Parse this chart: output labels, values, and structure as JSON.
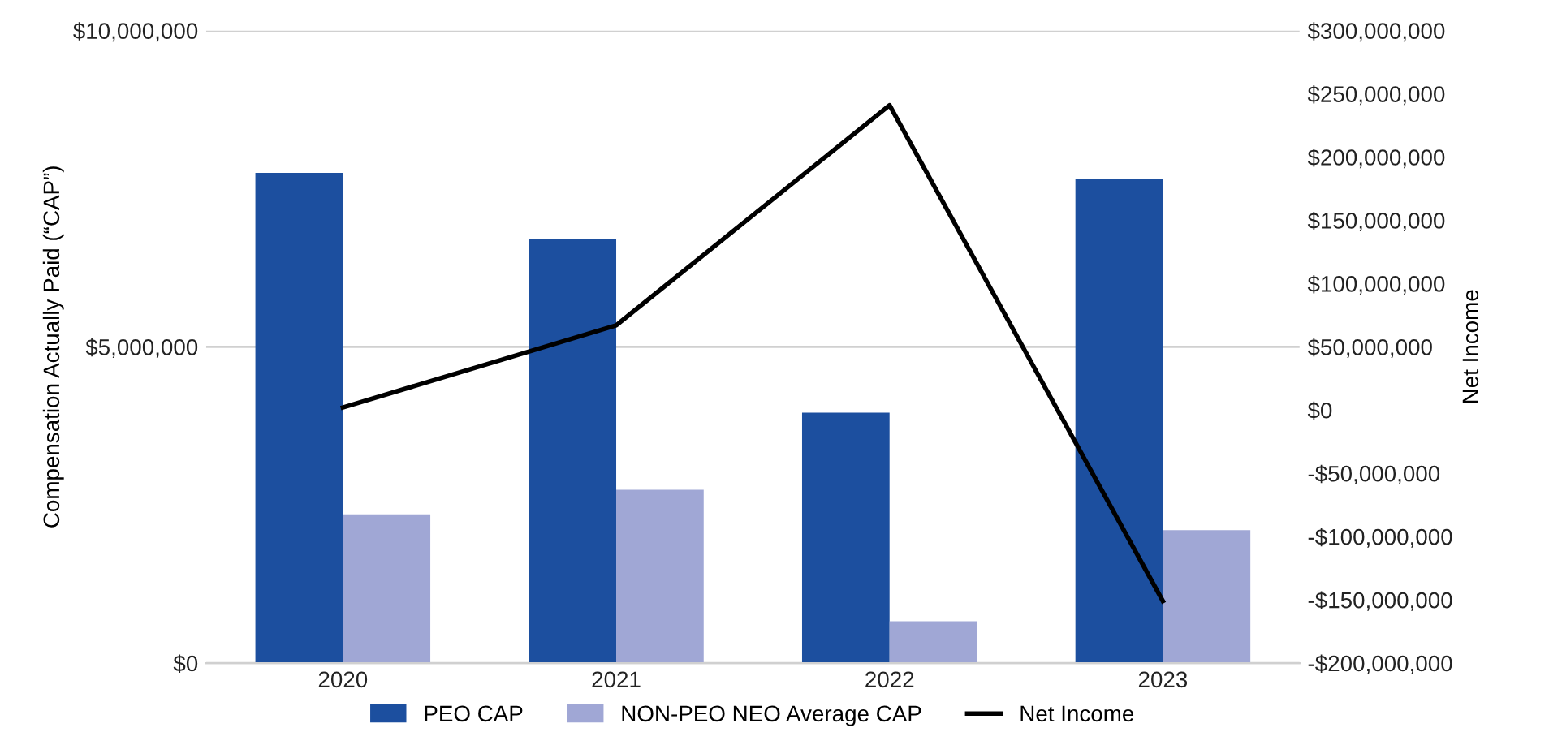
{
  "chart_data": {
    "type": "bar",
    "ylabel": "Compensation Actually Paid (“CAP”)",
    "y2label": "Net Income",
    "categories": [
      "2020",
      "2021",
      "2022",
      "2023"
    ],
    "series": [
      {
        "name": "PEO CAP",
        "color": "#1c4f9f",
        "values": [
          7750000,
          6700000,
          3960000,
          7650000
        ]
      },
      {
        "name": "NON-PEO NEO Average CAP",
        "color": "#a0a7d5",
        "values": [
          2350000,
          2740000,
          660000,
          2100000
        ]
      },
      {
        "name": "Net Income",
        "type": "line",
        "color": "#000000",
        "axis": "y2",
        "values": [
          2000000,
          67000000,
          241000000,
          -151000000
        ]
      }
    ],
    "ylim": [
      0,
      10000000
    ],
    "yticks": [
      {
        "value": 0,
        "label": "$0"
      },
      {
        "value": 5000000,
        "label": "$5,000,000"
      },
      {
        "value": 10000000,
        "label": "$10,000,000"
      }
    ],
    "y2lim": [
      -200000000,
      300000000
    ],
    "y2ticks": [
      {
        "value": -200000000,
        "label": "-$200,000,000"
      },
      {
        "value": -150000000,
        "label": "-$150,000,000"
      },
      {
        "value": -100000000,
        "label": "-$100,000,000"
      },
      {
        "value": -50000000,
        "label": "-$50,000,000"
      },
      {
        "value": 0,
        "label": "$0"
      },
      {
        "value": 50000000,
        "label": "$50,000,000"
      },
      {
        "value": 100000000,
        "label": "$100,000,000"
      },
      {
        "value": 150000000,
        "label": "$150,000,000"
      },
      {
        "value": 200000000,
        "label": "$200,000,000"
      },
      {
        "value": 250000000,
        "label": "$250,000,000"
      },
      {
        "value": 300000000,
        "label": "$300,000,000"
      }
    ],
    "grid": "y",
    "legend": "bottom"
  }
}
